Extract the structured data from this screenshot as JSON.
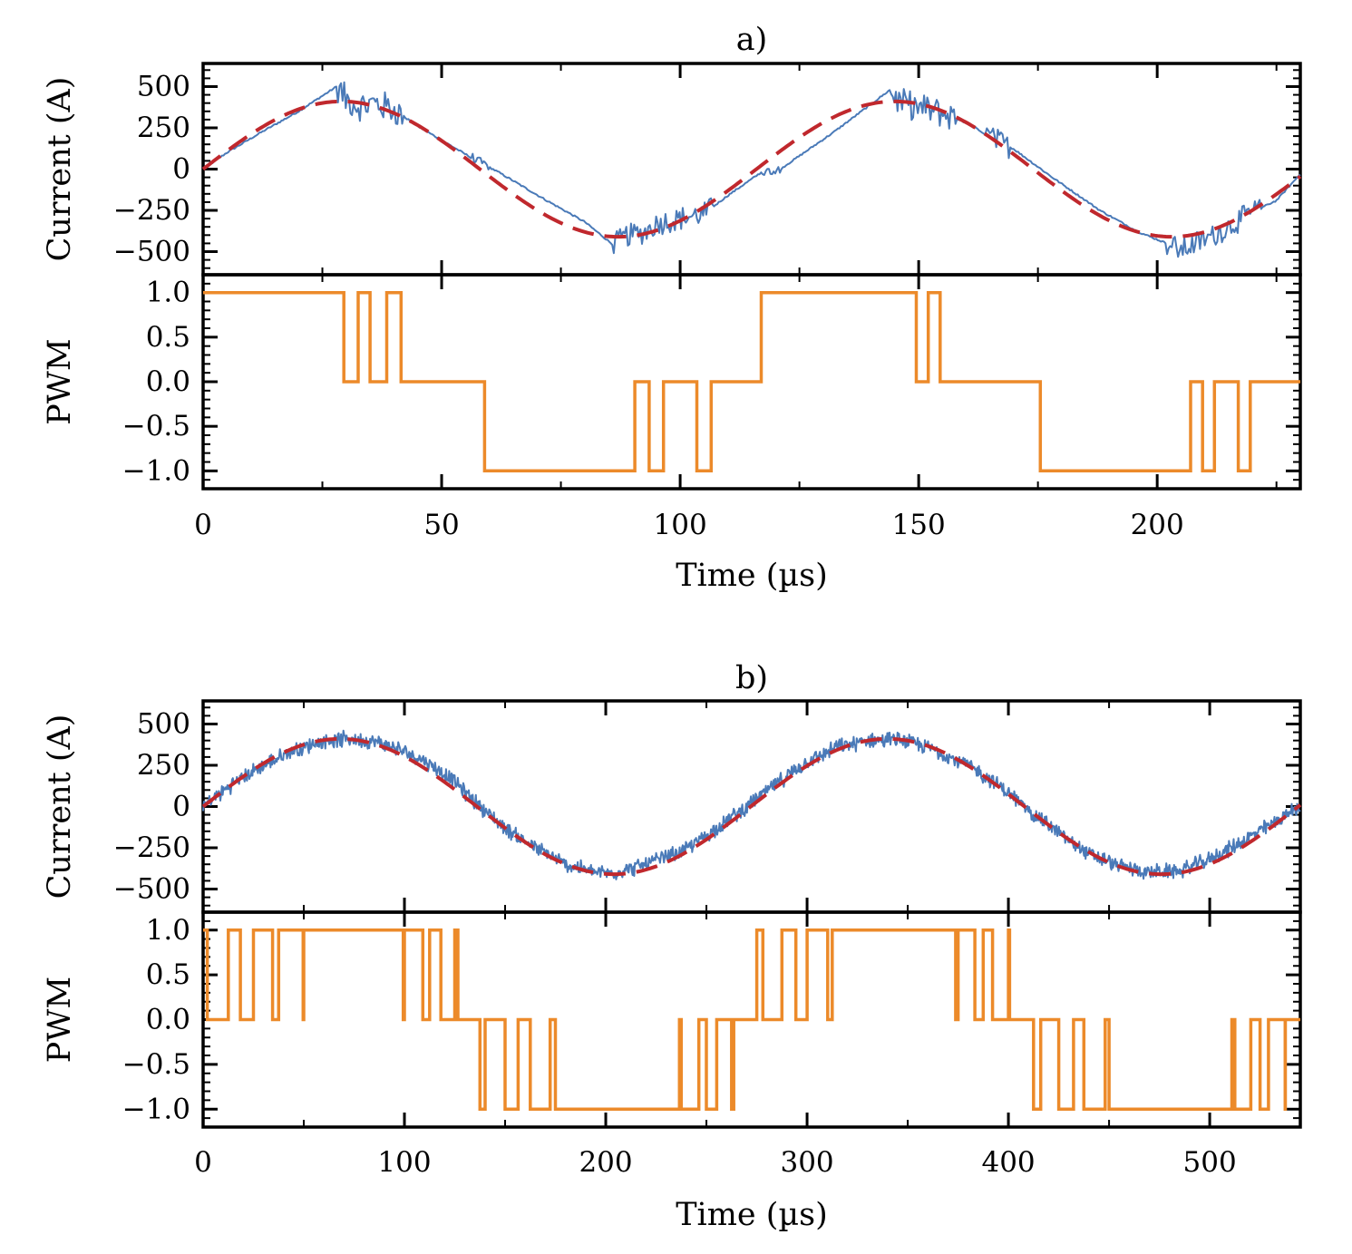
{
  "figure": {
    "time_label": "Time (µs)",
    "current_label": "Current (A)",
    "pwm_label": "PWM",
    "colors": {
      "measured": "#4a7ab8",
      "reference": "#c0282d",
      "pwm": "#ec8a2a",
      "axis": "#000000"
    }
  },
  "chart_data": [
    {
      "panel": "a)",
      "title": "a)",
      "type": "line",
      "xlabel": "Time (µs)",
      "xlim": [
        0,
        230
      ],
      "xticks": [
        0,
        50,
        100,
        150,
        200
      ],
      "current": {
        "ylabel": "Current (A)",
        "ylim": [
          -640,
          640
        ],
        "yticks": [
          500,
          250,
          0,
          -250,
          -500
        ],
        "ytick_labels": [
          "500",
          "250",
          "0",
          "−250",
          "−500"
        ],
        "reference": {
          "name": "reference",
          "shape": "sine",
          "amplitude": 410,
          "period_us": 116,
          "phase_us": 0,
          "style": "dashed"
        },
        "measured": {
          "name": "measured",
          "x": [
            0,
            5,
            12,
            20,
            28,
            30,
            33,
            36,
            40,
            45,
            55,
            62,
            72,
            80,
            86,
            89,
            92,
            95,
            100,
            105,
            110,
            117,
            121,
            126,
            132,
            138,
            144,
            146,
            150,
            155,
            160,
            166,
            170,
            178,
            188,
            196,
            202,
            205,
            208,
            212,
            216,
            220,
            225,
            230
          ],
          "y": [
            0,
            100,
            220,
            350,
            500,
            420,
            380,
            400,
            360,
            260,
            90,
            -20,
            -190,
            -320,
            -460,
            -400,
            -390,
            -330,
            -300,
            -270,
            -160,
            -20,
            0,
            100,
            220,
            350,
            480,
            400,
            370,
            340,
            280,
            180,
            120,
            -50,
            -250,
            -380,
            -450,
            -490,
            -450,
            -400,
            -330,
            -260,
            -190,
            -30
          ]
        },
        "bursts": [
          {
            "start": 28,
            "end": 42,
            "amp": 90
          },
          {
            "start": 56,
            "end": 60,
            "amp": 25
          },
          {
            "start": 86,
            "end": 107,
            "amp": 70
          },
          {
            "start": 117,
            "end": 121,
            "amp": 25
          },
          {
            "start": 144,
            "end": 158,
            "amp": 90
          },
          {
            "start": 164,
            "end": 169,
            "amp": 70
          },
          {
            "start": 202,
            "end": 222,
            "amp": 70
          }
        ]
      },
      "pwm": {
        "ylabel": "PWM",
        "ylim": [
          -1.2,
          1.2
        ],
        "yticks": [
          1.0,
          0.5,
          0.0,
          -0.5,
          -1.0
        ],
        "ytick_labels": [
          "1.0",
          "0.5",
          "0.0",
          "−0.5",
          "−1.0"
        ],
        "steps": [
          [
            0,
            1
          ],
          [
            29.5,
            0
          ],
          [
            32.5,
            1
          ],
          [
            35,
            0
          ],
          [
            38.5,
            1
          ],
          [
            41.5,
            0
          ],
          [
            59,
            -1
          ],
          [
            90.5,
            0
          ],
          [
            93.5,
            -1
          ],
          [
            96.5,
            0
          ],
          [
            103.5,
            -1
          ],
          [
            106.5,
            0
          ],
          [
            117,
            1
          ],
          [
            149.5,
            0
          ],
          [
            152,
            1
          ],
          [
            154.5,
            0
          ],
          [
            156,
            0
          ],
          [
            175.5,
            -1
          ],
          [
            207,
            0
          ],
          [
            209.5,
            -1
          ],
          [
            212,
            0
          ],
          [
            217,
            -1
          ],
          [
            219.5,
            0
          ],
          [
            230,
            0
          ]
        ]
      }
    },
    {
      "panel": "b)",
      "title": "b)",
      "type": "line",
      "xlabel": "Time (µs)",
      "xlim": [
        0,
        545
      ],
      "xticks": [
        0,
        100,
        200,
        300,
        400,
        500
      ],
      "current": {
        "ylabel": "Current (A)",
        "ylim": [
          -640,
          640
        ],
        "yticks": [
          500,
          250,
          0,
          -250,
          -500
        ],
        "ytick_labels": [
          "500",
          "250",
          "0",
          "−250",
          "−500"
        ],
        "reference": {
          "name": "reference",
          "shape": "sine",
          "amplitude": 410,
          "period_us": 272,
          "phase_us": 0,
          "style": "dashed"
        },
        "measured": {
          "name": "measured",
          "x": [
            0,
            15,
            30,
            45,
            60,
            75,
            90,
            110,
            125,
            135,
            150,
            165,
            180,
            195,
            205,
            220,
            240,
            255,
            270,
            285,
            300,
            315,
            330,
            345,
            360,
            380,
            395,
            410,
            425,
            440,
            455,
            470,
            485,
            500,
            515,
            530,
            545
          ],
          "y": [
            0,
            140,
            250,
            340,
            400,
            410,
            380,
            280,
            150,
            30,
            -130,
            -250,
            -350,
            -400,
            -400,
            -350,
            -260,
            -130,
            0,
            140,
            270,
            360,
            400,
            405,
            360,
            250,
            130,
            -20,
            -160,
            -290,
            -360,
            -400,
            -390,
            -320,
            -220,
            -110,
            0
          ]
        },
        "noise_amp": 55
      },
      "pwm": {
        "ylabel": "PWM",
        "ylim": [
          -1.2,
          1.2
        ],
        "yticks": [
          1.0,
          0.5,
          0.0,
          -0.5,
          -1.0
        ],
        "ytick_labels": [
          "1.0",
          "0.5",
          "0.0",
          "−0.5",
          "−1.0"
        ],
        "switching_period_us": 12.5,
        "reference_period_us": 272,
        "modulation_depth": 1.15
      }
    }
  ]
}
